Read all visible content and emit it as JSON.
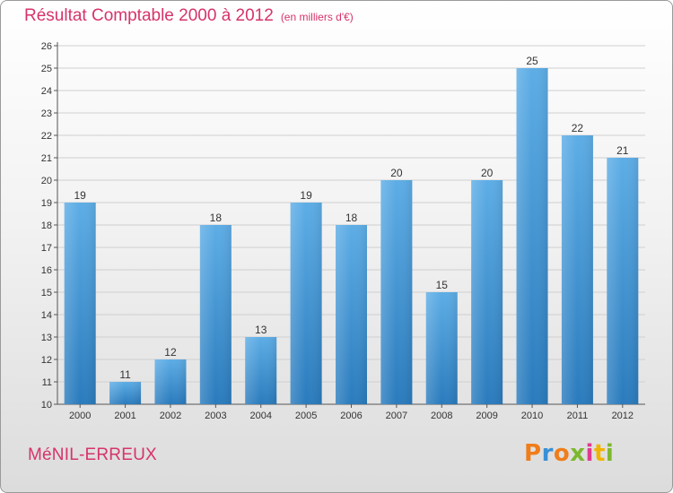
{
  "header": {
    "title": "Résultat Comptable 2000 à 2012",
    "unit": "(en milliers d'€)"
  },
  "footer": {
    "commune": "MéNIL-ERREUX",
    "logo_text": "Proxiti"
  },
  "colors": {
    "title": "#d6336c",
    "bar_top": "#5dade6",
    "bar_bottom": "#2a7bbd",
    "grid": "#cfcfcf",
    "logo_letters": [
      "#f07d1a",
      "#3a8fd6",
      "#f07d1a",
      "#7cb82f",
      "#e03a8f",
      "#f0b400",
      "#7cb82f"
    ]
  },
  "chart_data": {
    "type": "bar",
    "title": "Résultat Comptable 2000 à 2012",
    "xlabel": "",
    "ylabel": "",
    "categories": [
      "2000",
      "2001",
      "2002",
      "2003",
      "2004",
      "2005",
      "2006",
      "2007",
      "2008",
      "2009",
      "2010",
      "2011",
      "2012"
    ],
    "values": [
      19,
      11,
      12,
      18,
      13,
      19,
      18,
      20,
      15,
      20,
      25,
      22,
      21
    ],
    "ylim": [
      10,
      26
    ],
    "yticks": [
      10,
      11,
      12,
      13,
      14,
      15,
      16,
      17,
      18,
      19,
      20,
      21,
      22,
      23,
      24,
      25,
      26
    ],
    "grid": true,
    "data_labels": true
  }
}
